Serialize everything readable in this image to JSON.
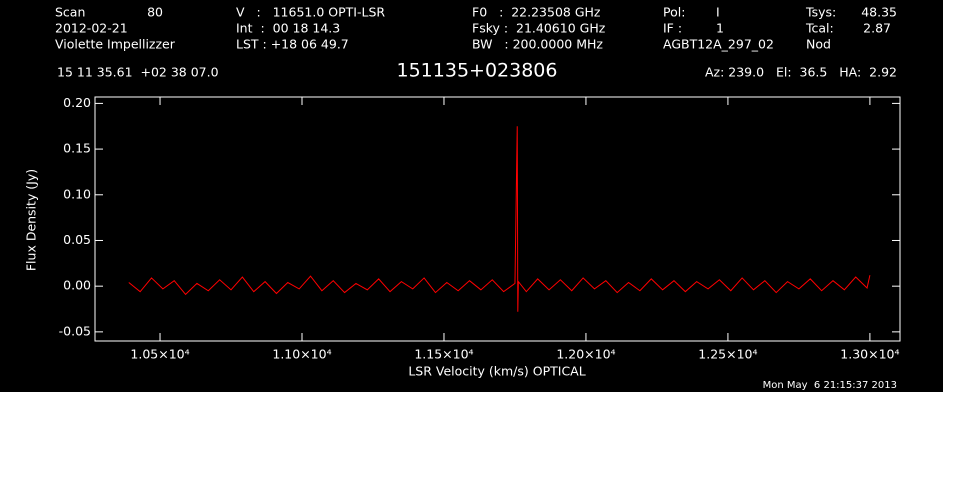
{
  "header": {
    "scan_label": "Scan",
    "scan": "80",
    "date": "2012-02-21",
    "observer": "Violette Impellizzer",
    "velocity": "V   :   11651.0 OPTI-LSR",
    "int": "Int  :  00 18 14.3",
    "lst": "LST : +18 06 49.7",
    "f0": "F0   :  22.23508 GHz",
    "fsky": "Fsky :  21.40610 GHz",
    "bw": "BW   : 200.0000 MHz",
    "pol_label": "Pol:",
    "pol": "I",
    "if_label": "IF :",
    "if": "1",
    "project": "AGBT12A_297_02",
    "tsys_label": "Tsys:",
    "tsys": "48.35",
    "tcal_label": "Tcal:",
    "tcal": "2.87",
    "proc": "Nod",
    "coords": "15 11 35.61  +02 38 07.0",
    "source": "151135+023806",
    "azel": "Az: 239.0   El:  36.5   HA:  2.92",
    "timestamp": "Mon May  6 21:15:37 2013"
  },
  "chart_data": {
    "type": "line",
    "x_label": "LSR Velocity (km/s) OPTICAL",
    "y_label": "Flux Density (Jy)",
    "color": "#ff0000",
    "x": [
      10390,
      10430,
      10470,
      10510,
      10550,
      10590,
      10630,
      10670,
      10710,
      10750,
      10790,
      10830,
      10870,
      10910,
      10950,
      10990,
      11030,
      11070,
      11110,
      11150,
      11190,
      11230,
      11270,
      11310,
      11350,
      11390,
      11430,
      11470,
      11510,
      11550,
      11590,
      11630,
      11670,
      11710,
      11750,
      11758,
      11760,
      11762,
      11790,
      11830,
      11870,
      11910,
      11950,
      11990,
      12030,
      12070,
      12110,
      12150,
      12190,
      12230,
      12270,
      12310,
      12350,
      12390,
      12430,
      12470,
      12510,
      12550,
      12590,
      12630,
      12670,
      12710,
      12750,
      12790,
      12830,
      12870,
      12910,
      12950,
      12990,
      13000
    ],
    "values": [
      0.004,
      -0.006,
      0.009,
      -0.003,
      0.006,
      -0.009,
      0.003,
      -0.005,
      0.007,
      -0.004,
      0.01,
      -0.006,
      0.005,
      -0.008,
      0.004,
      -0.003,
      0.011,
      -0.005,
      0.006,
      -0.007,
      0.003,
      -0.004,
      0.008,
      -0.006,
      0.005,
      -0.003,
      0.009,
      -0.007,
      0.004,
      -0.005,
      0.006,
      -0.004,
      0.007,
      -0.006,
      0.003,
      0.175,
      -0.028,
      0.005,
      -0.006,
      0.008,
      -0.004,
      0.007,
      -0.005,
      0.009,
      -0.003,
      0.006,
      -0.007,
      0.004,
      -0.005,
      0.008,
      -0.004,
      0.006,
      -0.006,
      0.005,
      -0.003,
      0.007,
      -0.005,
      0.009,
      -0.004,
      0.006,
      -0.007,
      0.005,
      -0.003,
      0.008,
      -0.005,
      0.006,
      -0.004,
      0.01,
      -0.002,
      0.012
    ],
    "xlim": [
      10271,
      13106
    ],
    "ylim": [
      -0.06,
      0.207
    ],
    "xticks": [
      {
        "value": 10500,
        "label": "1.05×10⁴"
      },
      {
        "value": 11000,
        "label": "1.10×10⁴"
      },
      {
        "value": 11500,
        "label": "1.15×10⁴"
      },
      {
        "value": 12000,
        "label": "1.20×10⁴"
      },
      {
        "value": 12500,
        "label": "1.25×10⁴"
      },
      {
        "value": 13000,
        "label": "1.30×10⁴"
      }
    ],
    "yticks": [
      {
        "value": -0.05,
        "label": "-0.05"
      },
      {
        "value": 0,
        "label": "0.00"
      },
      {
        "value": 0.05,
        "label": "0.05"
      },
      {
        "value": 0.1,
        "label": "0.10"
      },
      {
        "value": 0.15,
        "label": "0.15"
      },
      {
        "value": 0.2,
        "label": "0.20"
      }
    ]
  }
}
